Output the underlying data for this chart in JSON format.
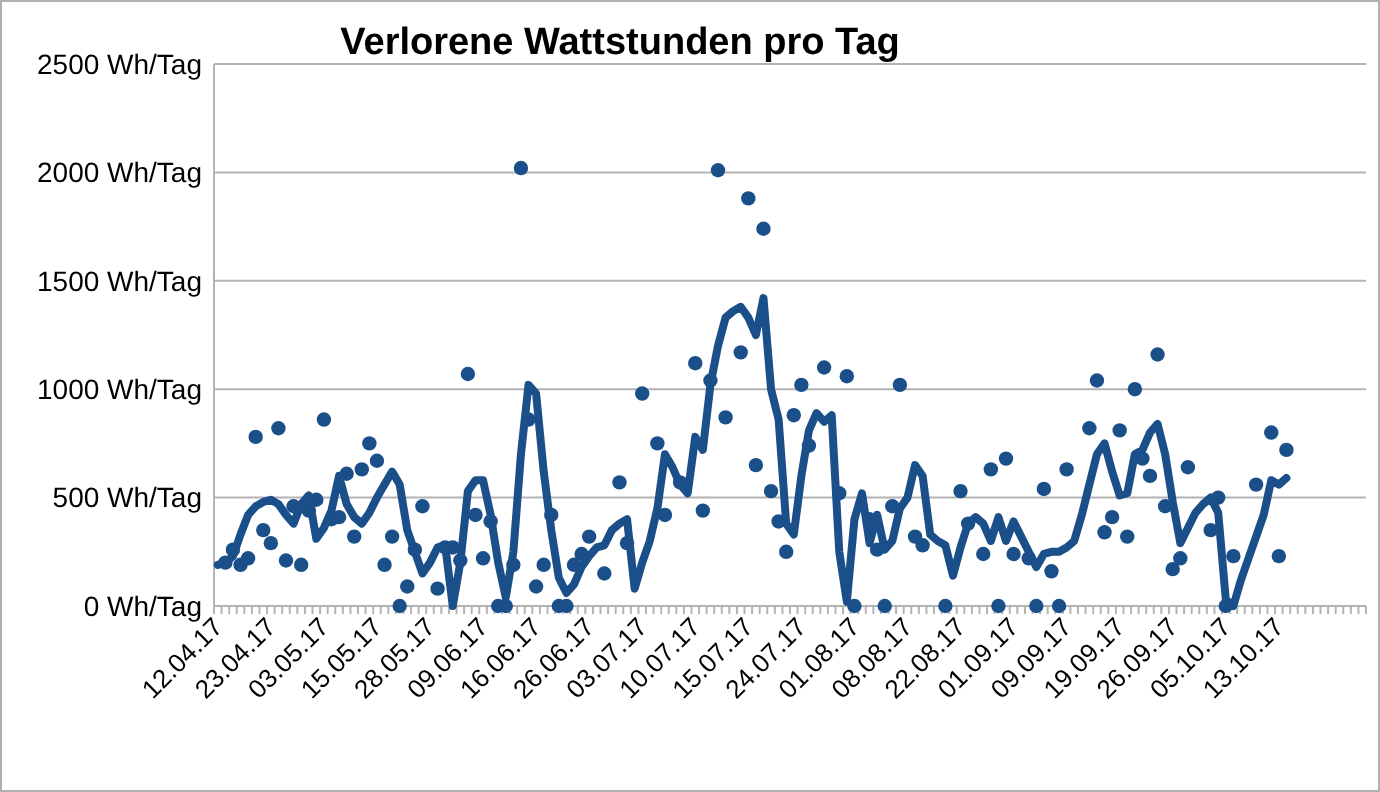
{
  "chart_data": {
    "type": "line",
    "title": "Verlorene Wattstunden pro Tag",
    "categories": [
      "12.04.17",
      null,
      null,
      null,
      null,
      null,
      null,
      "23.04.17",
      null,
      null,
      null,
      null,
      null,
      null,
      "03.05.17",
      null,
      null,
      null,
      null,
      null,
      null,
      "15.05.17",
      null,
      null,
      null,
      null,
      null,
      null,
      "28.05.17",
      null,
      null,
      null,
      null,
      null,
      null,
      "09.06.17",
      null,
      null,
      null,
      null,
      null,
      null,
      "16.06.17",
      null,
      null,
      null,
      null,
      null,
      null,
      "26.06.17",
      null,
      null,
      null,
      null,
      null,
      null,
      "03.07.17",
      null,
      null,
      null,
      null,
      null,
      null,
      "10.07.17",
      null,
      null,
      null,
      null,
      null,
      null,
      "15.07.17",
      null,
      null,
      null,
      null,
      null,
      null,
      "24.07.17",
      null,
      null,
      null,
      null,
      null,
      null,
      "01.08.17",
      null,
      null,
      null,
      null,
      null,
      null,
      "08.08.17",
      null,
      null,
      null,
      null,
      null,
      null,
      "22.08.17",
      null,
      null,
      null,
      null,
      null,
      null,
      "01.09.17",
      null,
      null,
      null,
      null,
      null,
      null,
      "09.09.17",
      null,
      null,
      null,
      null,
      null,
      null,
      "19.09.17",
      null,
      null,
      null,
      null,
      null,
      null,
      "26.09.17",
      null,
      null,
      null,
      null,
      null,
      null,
      "05.10.17",
      null,
      null,
      null,
      null,
      null,
      null,
      "13.10.17",
      null,
      null,
      null,
      null,
      null,
      null,
      null,
      null,
      null,
      null,
      null
    ],
    "series": [
      {
        "type": "scatter",
        "marker": "circle",
        "color": "#1b4f8a",
        "values": [
          null,
          200,
          260,
          190,
          220,
          780,
          350,
          290,
          820,
          210,
          460,
          190,
          440,
          490,
          860,
          400,
          410,
          610,
          320,
          630,
          750,
          670,
          190,
          320,
          0,
          90,
          260,
          460,
          null,
          80,
          270,
          270,
          210,
          1070,
          420,
          220,
          390,
          0,
          0,
          190,
          2020,
          860,
          90,
          190,
          420,
          0,
          0,
          190,
          240,
          320,
          null,
          150,
          null,
          570,
          290,
          null,
          980,
          null,
          750,
          420,
          null,
          570,
          null,
          1120,
          440,
          1040,
          2010,
          870,
          null,
          1170,
          1880,
          650,
          1740,
          530,
          390,
          250,
          880,
          1020,
          740,
          null,
          1100,
          null,
          520,
          1060,
          0,
          null,
          400,
          260,
          0,
          460,
          1020,
          null,
          320,
          280,
          null,
          null,
          0,
          null,
          530,
          380,
          null,
          240,
          630,
          0,
          680,
          240,
          null,
          220,
          0,
          540,
          160,
          0,
          630,
          null,
          null,
          820,
          1040,
          340,
          410,
          810,
          320,
          1000,
          680,
          600,
          1160,
          460,
          170,
          220,
          640,
          null,
          null,
          350,
          500,
          0,
          230,
          null,
          null,
          560,
          null,
          800,
          230,
          720,
          null,
          null,
          null,
          null,
          null,
          null,
          null,
          null,
          null,
          null
        ]
      },
      {
        "color": "#1b4f8a",
        "values": [
          190,
          200,
          230,
          330,
          420,
          460,
          480,
          490,
          470,
          420,
          380,
          470,
          510,
          310,
          360,
          440,
          600,
          470,
          410,
          380,
          430,
          500,
          560,
          620,
          560,
          350,
          250,
          150,
          200,
          270,
          280,
          0,
          200,
          530,
          580,
          580,
          420,
          200,
          40,
          250,
          700,
          1020,
          980,
          620,
          350,
          130,
          60,
          100,
          180,
          230,
          270,
          280,
          350,
          380,
          400,
          80,
          200,
          300,
          450,
          700,
          640,
          560,
          520,
          780,
          720,
          1020,
          1200,
          1330,
          1360,
          1380,
          1330,
          1250,
          1420,
          1000,
          860,
          380,
          330,
          600,
          810,
          890,
          850,
          880,
          250,
          20,
          400,
          520,
          290,
          420,
          260,
          300,
          450,
          500,
          650,
          600,
          330,
          300,
          280,
          140,
          270,
          380,
          410,
          380,
          300,
          410,
          300,
          390,
          320,
          250,
          180,
          240,
          250,
          250,
          270,
          300,
          420,
          560,
          700,
          750,
          620,
          510,
          520,
          700,
          720,
          800,
          840,
          700,
          480,
          290,
          360,
          430,
          470,
          500,
          430,
          30,
          0,
          120,
          220,
          320,
          420,
          580,
          560,
          590,
          null,
          null,
          null,
          null,
          null,
          null,
          null,
          null,
          null,
          null
        ]
      }
    ],
    "ylim": [
      0,
      2500
    ],
    "yticks": [
      {
        "value": 0,
        "label": "0 Wh/Tag"
      },
      {
        "value": 500,
        "label": "500 Wh/Tag"
      },
      {
        "value": 1000,
        "label": "1000 Wh/Tag"
      },
      {
        "value": 1500,
        "label": "1500 Wh/Tag"
      },
      {
        "value": 2000,
        "label": "2000 Wh/Tag"
      },
      {
        "value": 2500,
        "label": "2500 Wh/Tag"
      }
    ],
    "grid": "y",
    "line_style": "solid"
  }
}
